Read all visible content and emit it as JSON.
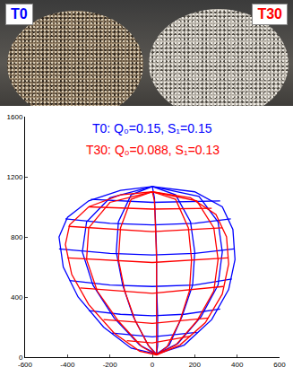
{
  "photo": {
    "labels": [
      {
        "text": "T0",
        "color": "blue"
      },
      {
        "text": "T30",
        "color": "red"
      }
    ]
  },
  "chart_data": {
    "type": "line",
    "xlim": [
      -600,
      600
    ],
    "ylim": [
      0,
      1600
    ],
    "xticks": [
      -600,
      -400,
      -200,
      0,
      200,
      400,
      600
    ],
    "yticks": [
      0,
      400,
      800,
      1200,
      1600
    ],
    "grid": false,
    "series": [
      {
        "name": "T0",
        "color": "blue",
        "annotation": "T0: Q₀=0.15, S₁=0.15",
        "segments": [
          [
            [
              0,
              1135
            ],
            [
              -150,
              1110
            ],
            [
              -300,
              1040
            ],
            [
              -400,
              930
            ],
            [
              -440,
              800
            ],
            [
              -420,
              600
            ],
            [
              -350,
              400
            ],
            [
              -230,
              200
            ],
            [
              -100,
              60
            ],
            [
              20,
              20
            ],
            [
              150,
              80
            ],
            [
              280,
              250
            ],
            [
              360,
              450
            ],
            [
              390,
              650
            ],
            [
              380,
              850
            ],
            [
              330,
              1000
            ],
            [
              200,
              1100
            ],
            [
              0,
              1135
            ]
          ],
          [
            [
              -290,
              1050
            ],
            [
              0,
              1030
            ],
            [
              320,
              1040
            ]
          ],
          [
            [
              -410,
              920
            ],
            [
              -200,
              890
            ],
            [
              0,
              880
            ],
            [
              200,
              890
            ],
            [
              370,
              920
            ]
          ],
          [
            [
              -440,
              720
            ],
            [
              -200,
              690
            ],
            [
              0,
              680
            ],
            [
              200,
              690
            ],
            [
              385,
              720
            ]
          ],
          [
            [
              -390,
              510
            ],
            [
              -200,
              480
            ],
            [
              0,
              470
            ],
            [
              200,
              480
            ],
            [
              375,
              520
            ]
          ],
          [
            [
              -300,
              310
            ],
            [
              -150,
              285
            ],
            [
              0,
              275
            ],
            [
              150,
              285
            ],
            [
              320,
              320
            ]
          ],
          [
            [
              -190,
              160
            ],
            [
              0,
              135
            ],
            [
              210,
              165
            ]
          ],
          [
            [
              0,
              1135
            ],
            [
              -200,
              1060
            ],
            [
              -310,
              900
            ],
            [
              -330,
              700
            ],
            [
              -280,
              480
            ],
            [
              -180,
              260
            ],
            [
              -60,
              80
            ],
            [
              20,
              20
            ]
          ],
          [
            [
              0,
              1135
            ],
            [
              -100,
              1080
            ],
            [
              -160,
              900
            ],
            [
              -170,
              700
            ],
            [
              -140,
              480
            ],
            [
              -90,
              270
            ],
            [
              -20,
              80
            ],
            [
              20,
              20
            ]
          ],
          [
            [
              0,
              1135
            ],
            [
              10,
              1060
            ],
            [
              15,
              900
            ],
            [
              20,
              700
            ],
            [
              20,
              480
            ],
            [
              25,
              270
            ],
            [
              25,
              80
            ],
            [
              20,
              20
            ]
          ],
          [
            [
              0,
              1135
            ],
            [
              110,
              1080
            ],
            [
              180,
              900
            ],
            [
              200,
              700
            ],
            [
              190,
              480
            ],
            [
              140,
              270
            ],
            [
              80,
              80
            ],
            [
              20,
              20
            ]
          ],
          [
            [
              0,
              1135
            ],
            [
              220,
              1070
            ],
            [
              310,
              900
            ],
            [
              330,
              700
            ],
            [
              310,
              480
            ],
            [
              230,
              270
            ],
            [
              120,
              90
            ],
            [
              20,
              20
            ]
          ]
        ]
      },
      {
        "name": "T30",
        "color": "red",
        "annotation": "T30: Q₀=0.088, S₁=0.13",
        "segments": [
          [
            [
              0,
              1100
            ],
            [
              -150,
              1080
            ],
            [
              -300,
              1000
            ],
            [
              -390,
              880
            ],
            [
              -410,
              750
            ],
            [
              -380,
              550
            ],
            [
              -300,
              350
            ],
            [
              -180,
              160
            ],
            [
              -60,
              40
            ],
            [
              20,
              15
            ],
            [
              130,
              80
            ],
            [
              250,
              230
            ],
            [
              330,
              420
            ],
            [
              360,
              620
            ],
            [
              350,
              800
            ],
            [
              300,
              950
            ],
            [
              180,
              1060
            ],
            [
              0,
              1100
            ]
          ],
          [
            [
              -300,
              1000
            ],
            [
              0,
              985
            ],
            [
              280,
              990
            ]
          ],
          [
            [
              -395,
              870
            ],
            [
              0,
              835
            ],
            [
              330,
              860
            ]
          ],
          [
            [
              -400,
              660
            ],
            [
              0,
              630
            ],
            [
              355,
              660
            ]
          ],
          [
            [
              -340,
              460
            ],
            [
              0,
              425
            ],
            [
              335,
              470
            ]
          ],
          [
            [
              -230,
              250
            ],
            [
              0,
              225
            ],
            [
              265,
              260
            ]
          ],
          [
            [
              -120,
              110
            ],
            [
              0,
              95
            ],
            [
              180,
              140
            ]
          ],
          [
            [
              0,
              1100
            ],
            [
              -200,
              1030
            ],
            [
              -300,
              860
            ],
            [
              -310,
              650
            ],
            [
              -260,
              440
            ],
            [
              -160,
              240
            ],
            [
              -50,
              70
            ],
            [
              20,
              15
            ]
          ],
          [
            [
              0,
              1100
            ],
            [
              -100,
              1050
            ],
            [
              -150,
              860
            ],
            [
              -160,
              650
            ],
            [
              -130,
              440
            ],
            [
              -80,
              240
            ],
            [
              -15,
              70
            ],
            [
              20,
              15
            ]
          ],
          [
            [
              0,
              1100
            ],
            [
              10,
              1040
            ],
            [
              15,
              860
            ],
            [
              20,
              650
            ],
            [
              20,
              440
            ],
            [
              20,
              240
            ],
            [
              20,
              70
            ],
            [
              20,
              15
            ]
          ],
          [
            [
              0,
              1100
            ],
            [
              110,
              1050
            ],
            [
              170,
              860
            ],
            [
              185,
              650
            ],
            [
              175,
              440
            ],
            [
              130,
              240
            ],
            [
              70,
              70
            ],
            [
              20,
              15
            ]
          ],
          [
            [
              0,
              1100
            ],
            [
              210,
              1040
            ],
            [
              290,
              860
            ],
            [
              310,
              650
            ],
            [
              290,
              440
            ],
            [
              210,
              240
            ],
            [
              110,
              80
            ],
            [
              20,
              15
            ]
          ]
        ]
      }
    ]
  }
}
